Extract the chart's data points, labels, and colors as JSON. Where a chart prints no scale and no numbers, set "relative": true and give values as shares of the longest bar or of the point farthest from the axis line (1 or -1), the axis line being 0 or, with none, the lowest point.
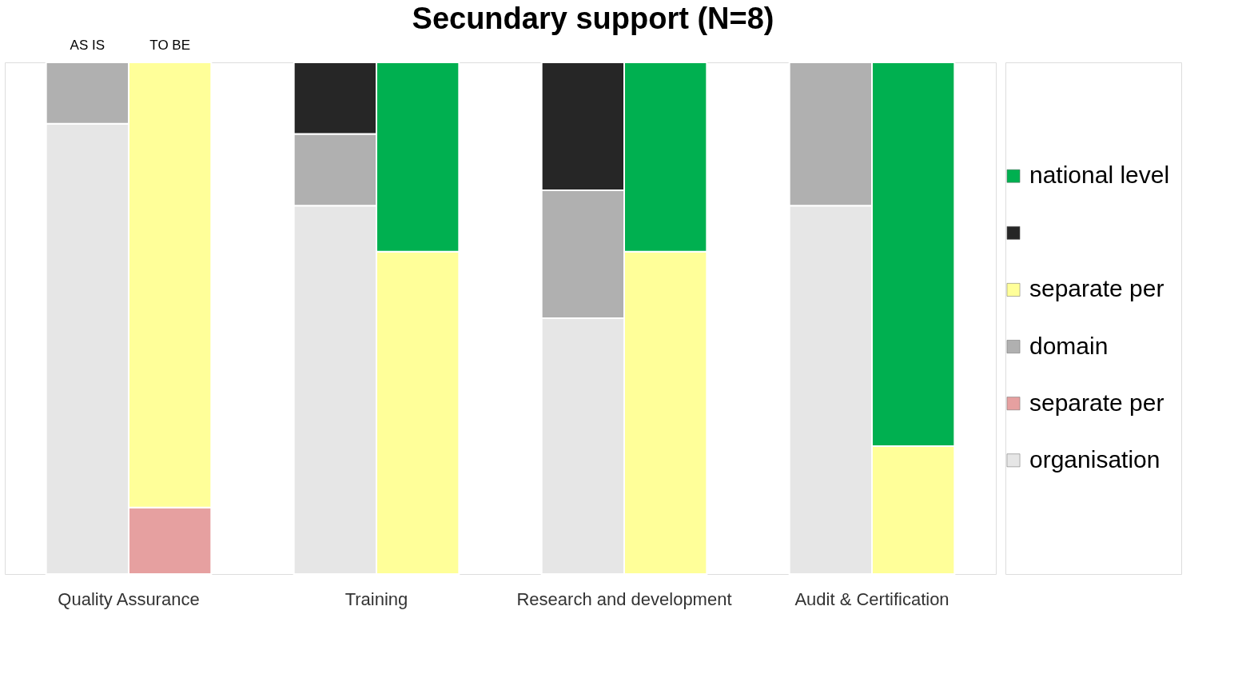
{
  "chart_data": {
    "type": "bar",
    "title": "Secundary support (N=8)",
    "stacked": true,
    "relative": true,
    "legend": "right",
    "categories": [
      "AS IS",
      "TO BE",
      null,
      null,
      null,
      null,
      null,
      null,
      null,
      null,
      null
    ],
    "annotations": [
      "Quality Assurance",
      "Training",
      "Research and development",
      "Audit & Certification"
    ],
    "series": [
      {
        "name": "organisation",
        "color": "#e6e6e6",
        "values": [
          0.88,
          null,
          null,
          0.72,
          null,
          null,
          0.5,
          null,
          null,
          0.72,
          null
        ]
      },
      {
        "name": "separate per",
        "color": "#e6a0a0",
        "values": [
          null,
          0.13,
          null,
          null,
          null,
          null,
          null,
          null,
          null,
          null,
          null
        ]
      },
      {
        "name": "domain",
        "color": "#b0b0b0",
        "values": [
          0.12,
          null,
          null,
          0.14,
          null,
          null,
          0.25,
          null,
          null,
          0.28,
          null
        ]
      },
      {
        "name": "separate per",
        "color": "#ffff99",
        "values": [
          null,
          0.87,
          null,
          null,
          0.63,
          null,
          null,
          0.63,
          null,
          null,
          0.25
        ]
      },
      {
        "color": "#262626",
        "values": [
          null,
          null,
          null,
          0.14,
          null,
          null,
          0.25,
          null,
          null,
          null,
          null
        ]
      },
      {
        "name": "national level",
        "color": "#00b050",
        "values": [
          null,
          null,
          null,
          null,
          0.37,
          null,
          null,
          0.37,
          null,
          null,
          0.75
        ]
      }
    ]
  }
}
